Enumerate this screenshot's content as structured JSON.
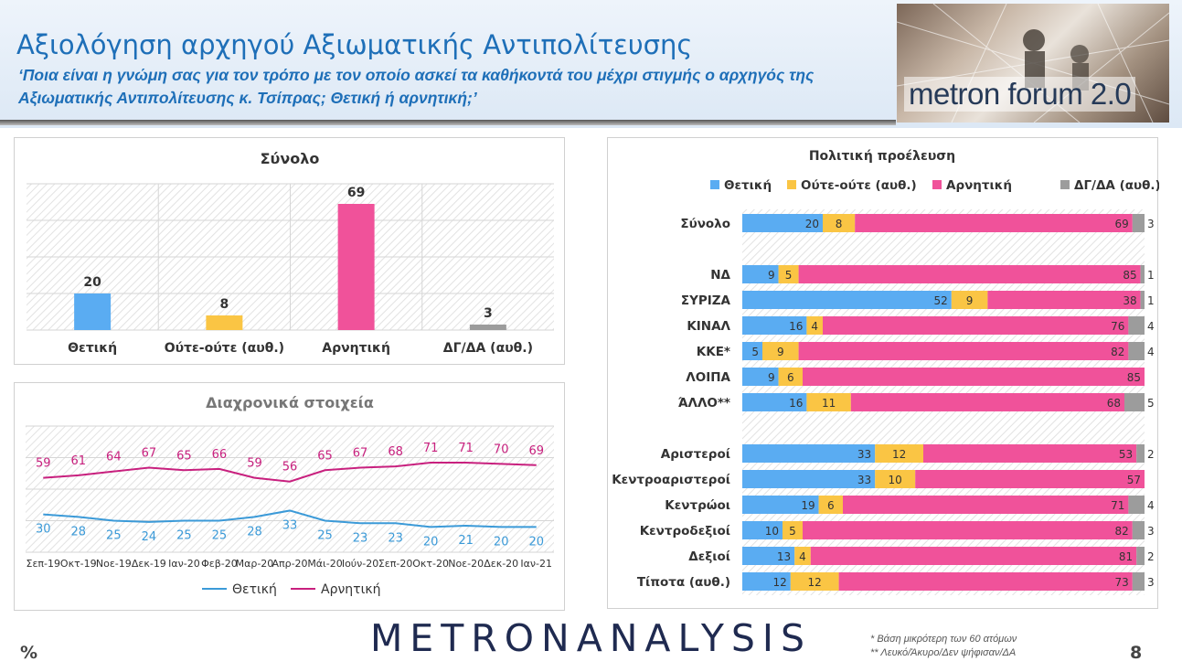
{
  "header": {
    "title": "Αξιολόγηση αρχηγού Αξιωματικής Αντιπολίτευσης",
    "question": "‘Ποια είναι η γνώμη σας για τον τρόπο με τον οποίο ασκεί τα καθήκοντά του μέχρι στιγμής ο αρχηγός της Αξιωματικής Αντιπολίτευσης κ. Τσίπρας; Θετική ή αρνητική;’",
    "logo_text": "metron forum 2.0"
  },
  "footer": {
    "brand": "METRONANALYSIS",
    "percent_label": "%",
    "page_number": "8",
    "notes": [
      "*  Βάση μικρότερη των 60 ατόμων",
      "** Λευκό/Άκυρο/Δεν ψήφισαν/ΔΑ"
    ]
  },
  "colors": {
    "positive": "#5aacf2",
    "neutral": "#fac544",
    "negative": "#f0529a",
    "dk": "#9c9c9c",
    "line_pos": "#3b9ad8",
    "line_neg": "#c8207e"
  },
  "chart_data": [
    {
      "type": "bar",
      "title": "Σύνολο",
      "categories": [
        "Θετική",
        "Ούτε-ούτε (αυθ.)",
        "Αρνητική",
        "ΔΓ/ΔΑ (αυθ.)"
      ],
      "values": [
        20,
        8,
        69,
        3
      ],
      "ylim": [
        0,
        100
      ],
      "grid": true
    },
    {
      "type": "line",
      "title": "Διαχρονικά στοιχεία",
      "x": [
        "Σεπ-19",
        "Οκτ-19",
        "Νοε-19",
        "Δεκ-19",
        "Ιαν-20",
        "Φεβ-20",
        "Μαρ-20",
        "Απρ-20",
        "Μάι-20",
        "Ιούν-20",
        "Σεπ-20",
        "Οκτ-20",
        "Νοε-20",
        "Δεκ-20",
        "Ιαν-21"
      ],
      "series": [
        {
          "name": "Θετική",
          "values": [
            30,
            28,
            25,
            24,
            25,
            25,
            28,
            33,
            25,
            23,
            23,
            20,
            21,
            20,
            20
          ]
        },
        {
          "name": "Αρνητική",
          "values": [
            59,
            61,
            64,
            67,
            65,
            66,
            59,
            56,
            65,
            67,
            68,
            71,
            71,
            70,
            69
          ]
        }
      ],
      "ylim": [
        0,
        100
      ],
      "legend": "bottom"
    },
    {
      "type": "bar",
      "stacked": "horizontal",
      "title": "Πολιτική προέλευση",
      "legend": "top",
      "series_names": [
        "Θετική",
        "Ούτε-ούτε (αυθ.)",
        "Αρνητική",
        "ΔΓ/ΔΑ (αυθ.)"
      ],
      "groups": [
        [
          {
            "label": "Σύνολο",
            "values": [
              20,
              8,
              69,
              3
            ]
          }
        ],
        [
          {
            "label": "ΝΔ",
            "values": [
              9,
              5,
              85,
              1
            ]
          },
          {
            "label": "ΣΥΡΙΖΑ",
            "values": [
              52,
              9,
              38,
              1
            ]
          },
          {
            "label": "ΚΙΝΑΛ",
            "values": [
              16,
              4,
              76,
              4
            ]
          },
          {
            "label": "ΚΚΕ*",
            "values": [
              5,
              9,
              82,
              4
            ]
          },
          {
            "label": "ΛΟΙΠΑ",
            "values": [
              9,
              6,
              85,
              0
            ]
          },
          {
            "label": "ΆΛΛΟ**",
            "values": [
              16,
              11,
              68,
              5
            ]
          }
        ],
        [
          {
            "label": "Αριστεροί",
            "values": [
              33,
              12,
              53,
              2
            ]
          },
          {
            "label": "Κεντροαριστεροί",
            "values": [
              33,
              10,
              57,
              0
            ]
          },
          {
            "label": "Κεντρώοι",
            "values": [
              19,
              6,
              71,
              4
            ]
          },
          {
            "label": "Κεντροδεξιοί",
            "values": [
              10,
              5,
              82,
              3
            ]
          },
          {
            "label": "Δεξιοί",
            "values": [
              13,
              4,
              81,
              2
            ]
          },
          {
            "label": "Τίποτα (αυθ.)",
            "values": [
              12,
              12,
              73,
              3
            ]
          }
        ]
      ]
    }
  ]
}
